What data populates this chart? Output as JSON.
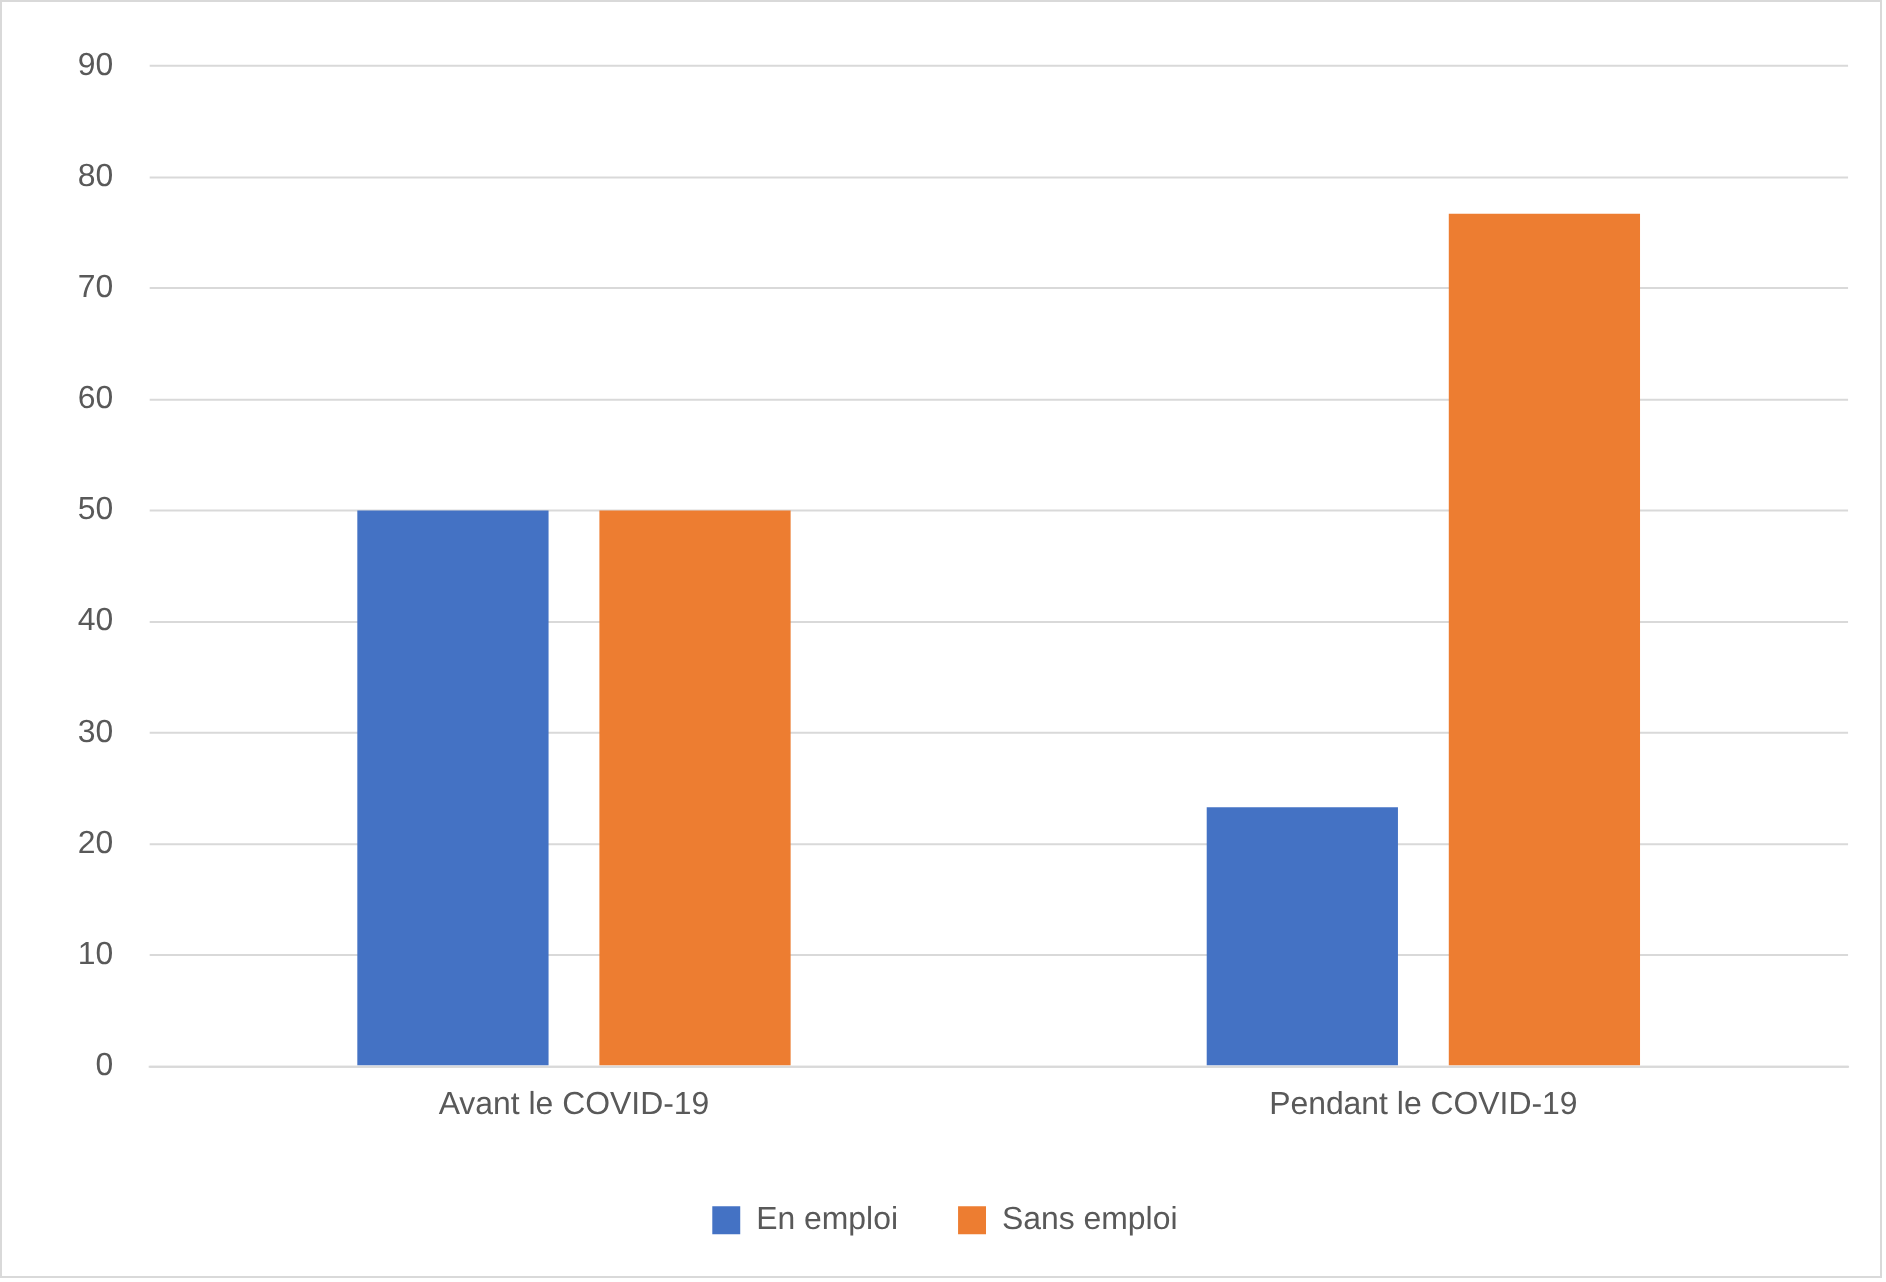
{
  "chart_data": {
    "type": "bar",
    "categories": [
      "Avant le COVID-19",
      "Pendant le COVID-19"
    ],
    "series": [
      {
        "name": "En emploi",
        "color": "#4472c4",
        "values": [
          50,
          23.3
        ]
      },
      {
        "name": "Sans emploi",
        "color": "#ed7d31",
        "values": [
          50,
          76.7
        ]
      }
    ],
    "ylim": [
      0,
      90
    ],
    "yticks": [
      0,
      10,
      20,
      30,
      40,
      50,
      60,
      70,
      80,
      90
    ],
    "grid": "y",
    "legend": "bottom"
  }
}
